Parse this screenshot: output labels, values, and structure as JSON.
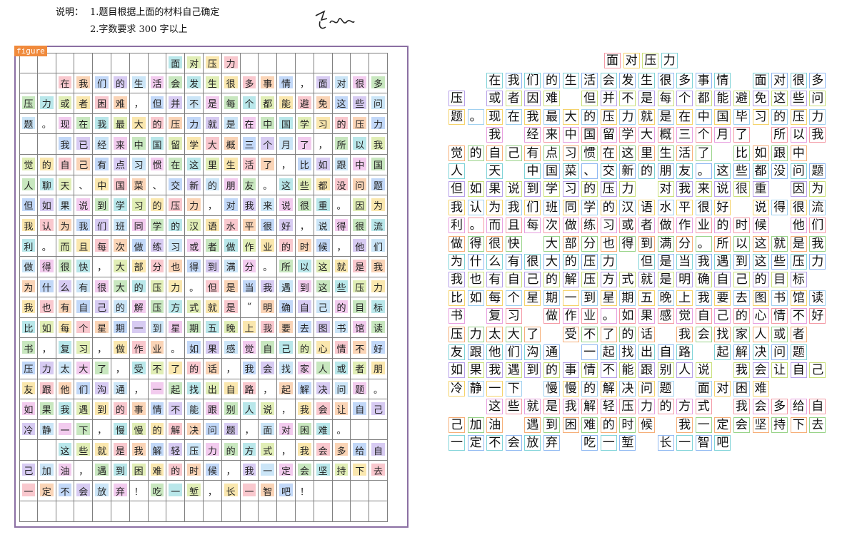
{
  "instructions": {
    "label": "说明：",
    "line1": "1.题目根据上面的材料自己确定",
    "line2": "2.字数要求 300 字以上"
  },
  "figure_tag": "figure",
  "essay": {
    "title": "面对压力",
    "lines": [
      "在我们的生活会发生很多事情，面对很多",
      "压力或者困难，但并不是每个都能避免这些问",
      "题。现在我最大的压力就是在中国学习的压力。",
      "我已经来中国留学大概三个月了，所以我",
      "觉的自己有点习惯在这里生活了，比如跟中国",
      "人聊天、中国菜、交新的朋友。这些都没问题。",
      "但如果说到学习的压力，对我来说很重。因为",
      "我认为我们班同学的汉语水平很好，说得很流",
      "利。而且每次做练习或者做作业的时候，他们",
      "做得很快，大部分也得到满分。所以这就是我",
      "为什么有很大的压力。但是当我遇到这些压力，",
      "我也有自己的解压方式就是“明确自己的目标”。",
      "比如每个星期一到星期五晚上我要去图书馆读",
      "书，复习，做作业。如果感觉自己的心情不好",
      "压力太大了，受不了的话，我会找家人或者朋",
      "友跟他们沟通，一起找出自路，起解决问题。",
      "如果我遇到的事情不能跟别人说，我会让自己",
      "冷静一下，慢慢的解决问题，面对困难。",
      "这些就是我解轻压力的方式，我会多给自",
      "己加油，遇到困难的时候，我一定会坚持下去，",
      "一定不会放弃！吃一堑，长一智吧！"
    ]
  },
  "ocr": {
    "title": "面对压力",
    "lines": [
      "在我们的生活会发生很多事情 面对很多",
      "压 或者因难 但并不是每个都能避免这些问",
      "题。现在我最大的压力就是在中国毕习的压力",
      "我 经来中国留学大概三个月了 所以我",
      "觉的自己有点习惯在这里生活了 比如跟中",
      "人 天 中国菜、交新的朋友。这些都没问题",
      "但如果说到学习的压力 对我来说很重 因为",
      "我认为我们班同学的汉语水平很好 说得很流",
      "利。而且每次做练习或者做作业的时候 他们",
      "做得很快 大部分也得到满分。所以这就是我",
      "为什么有很大的压力 但是当我遇到这些压力",
      "我也有自己的解压方式就是明确自己的目标",
      "比如每个星期一到星期五晚上我要去图书馆读",
      "书 复习 做作业。如果感觉自己的心情不好",
      "压力太大了 受不了的话 我会找家人或者",
      "友跟他们沟通 一起找出自路 起解决问题",
      "如果我遇到的事情不能跟别人说 我会让自己",
      "冷静一下 慢慢的解决问题 面对困难",
      "这些就是我解轻压力的方式 我会多给自",
      "己加油 遇到困难的时候 我一定会坚持下去",
      "一定不会放弃 吃一堑 长一智吧"
    ]
  },
  "palette": [
    "#7fd3d8",
    "#f49aa6",
    "#b7a0e8",
    "#9ad48a",
    "#f5d36b",
    "#8fb8f2",
    "#e8a0e0",
    "#c9e07a",
    "#f6b07a",
    "#a0d0f0"
  ]
}
